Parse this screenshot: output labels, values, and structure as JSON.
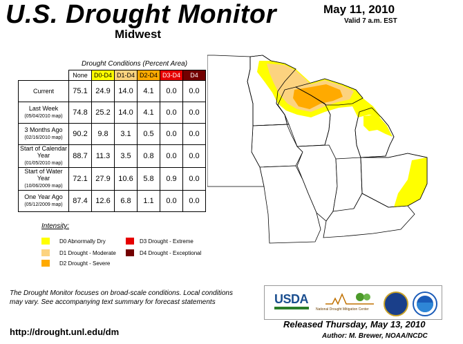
{
  "header": {
    "title": "U.S. Drought Monitor",
    "region": "Midwest",
    "date": "May 11, 2010",
    "valid": "Valid 7 a.m. EST"
  },
  "table": {
    "caption": "Drought Conditions (Percent Area)",
    "columns": [
      "None",
      "D0-D4",
      "D1-D4",
      "D2-D4",
      "D3-D4",
      "D4"
    ],
    "rows": [
      {
        "label": "Current",
        "sub": "",
        "values": [
          "75.1",
          "24.9",
          "14.0",
          "4.1",
          "0.0",
          "0.0"
        ]
      },
      {
        "label": "Last Week",
        "sub": "(05/04/2010 map)",
        "values": [
          "74.8",
          "25.2",
          "14.0",
          "4.1",
          "0.0",
          "0.0"
        ]
      },
      {
        "label": "3 Months Ago",
        "sub": "(02/16/2010 map)",
        "values": [
          "90.2",
          "9.8",
          "3.1",
          "0.5",
          "0.0",
          "0.0"
        ]
      },
      {
        "label": "Start of Calendar Year",
        "sub": "(01/05/2010 map)",
        "values": [
          "88.7",
          "11.3",
          "3.5",
          "0.8",
          "0.0",
          "0.0"
        ]
      },
      {
        "label": "Start of Water Year",
        "sub": "(10/06/2009 map)",
        "values": [
          "72.1",
          "27.9",
          "10.6",
          "5.8",
          "0.9",
          "0.0"
        ]
      },
      {
        "label": "One Year Ago",
        "sub": "(05/12/2009 map)",
        "values": [
          "87.4",
          "12.6",
          "6.8",
          "1.1",
          "0.0",
          "0.0"
        ]
      }
    ]
  },
  "legend": {
    "title": "Intensity:",
    "items": [
      {
        "label": "D0 Abnormally Dry",
        "color": "#ffff00"
      },
      {
        "label": "D1 Drought - Moderate",
        "color": "#fcd37f"
      },
      {
        "label": "D2 Drought - Severe",
        "color": "#ffaa00"
      },
      {
        "label": "D3 Drought - Extreme",
        "color": "#e60000"
      },
      {
        "label": "D4 Drought - Exceptional",
        "color": "#730000"
      }
    ]
  },
  "colors": {
    "d0": "#ffff00",
    "d1": "#fcd37f",
    "d2": "#ffaa00",
    "d3": "#e60000",
    "d4": "#730000"
  },
  "footer": {
    "note": "The Drought Monitor focuses on broad-scale conditions. Local conditions may vary. See accompanying text summary for forecast statements",
    "url": "http://drought.unl.edu/dm",
    "released": "Released Thursday, May 13, 2010",
    "author": "Author: M. Brewer, NOAA/NCDC"
  },
  "logos": {
    "usda": "USDA",
    "ndmc": "National Drought Mitigation Center"
  }
}
